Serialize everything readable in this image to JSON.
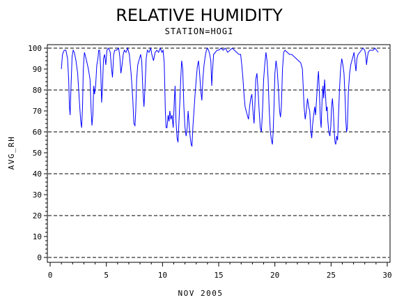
{
  "chart_data": {
    "type": "line",
    "title": "RELATIVE HUMIDITY",
    "subtitle": "STATION=HOGI",
    "xlabel": "NOV 2005",
    "ylabel": "AVG_RH",
    "xlim": [
      0,
      30
    ],
    "ylim": [
      0,
      100
    ],
    "xticks": [
      0,
      5,
      10,
      15,
      20,
      25,
      30
    ],
    "yticks": [
      0,
      10,
      20,
      30,
      40,
      50,
      60,
      70,
      80,
      90,
      100
    ],
    "grid_lines": [
      0,
      20,
      40,
      60,
      80,
      100
    ],
    "grid": "horizontal dashed",
    "series": [
      {
        "color": "#0000ff",
        "points": [
          [
            1.0,
            90
          ],
          [
            1.1,
            97
          ],
          [
            1.25,
            99
          ],
          [
            1.4,
            99
          ],
          [
            1.55,
            95
          ],
          [
            1.65,
            85
          ],
          [
            1.72,
            72
          ],
          [
            1.78,
            68
          ],
          [
            1.85,
            80
          ],
          [
            1.95,
            96
          ],
          [
            2.05,
            99
          ],
          [
            2.15,
            98
          ],
          [
            2.3,
            94
          ],
          [
            2.45,
            88
          ],
          [
            2.6,
            75
          ],
          [
            2.72,
            65
          ],
          [
            2.8,
            62
          ],
          [
            2.88,
            72
          ],
          [
            2.95,
            90
          ],
          [
            3.05,
            98
          ],
          [
            3.2,
            95
          ],
          [
            3.4,
            90
          ],
          [
            3.55,
            85
          ],
          [
            3.65,
            70
          ],
          [
            3.72,
            63
          ],
          [
            3.8,
            68
          ],
          [
            3.88,
            82
          ],
          [
            3.95,
            78
          ],
          [
            4.05,
            82
          ],
          [
            4.15,
            92
          ],
          [
            4.25,
            95
          ],
          [
            4.32,
            99
          ],
          [
            4.4,
            99
          ],
          [
            4.5,
            90
          ],
          [
            4.58,
            74
          ],
          [
            4.65,
            80
          ],
          [
            4.75,
            95
          ],
          [
            4.85,
            97
          ],
          [
            4.95,
            92
          ],
          [
            5.05,
            99
          ],
          [
            5.2,
            100
          ],
          [
            5.35,
            98
          ],
          [
            5.45,
            91
          ],
          [
            5.55,
            86
          ],
          [
            5.65,
            97
          ],
          [
            5.75,
            99
          ],
          [
            5.9,
            99
          ],
          [
            6.1,
            100
          ],
          [
            6.2,
            96
          ],
          [
            6.3,
            88
          ],
          [
            6.4,
            92
          ],
          [
            6.5,
            97
          ],
          [
            6.6,
            99
          ],
          [
            6.75,
            98
          ],
          [
            6.9,
            100
          ],
          [
            7.05,
            97
          ],
          [
            7.2,
            88
          ],
          [
            7.35,
            76
          ],
          [
            7.45,
            64
          ],
          [
            7.55,
            63
          ],
          [
            7.62,
            70
          ],
          [
            7.7,
            85
          ],
          [
            7.8,
            92
          ],
          [
            7.95,
            95
          ],
          [
            8.05,
            97
          ],
          [
            8.15,
            94
          ],
          [
            8.25,
            80
          ],
          [
            8.35,
            72
          ],
          [
            8.45,
            82
          ],
          [
            8.55,
            95
          ],
          [
            8.65,
            99
          ],
          [
            8.8,
            98
          ],
          [
            8.95,
            100
          ],
          [
            9.05,
            97
          ],
          [
            9.2,
            94
          ],
          [
            9.35,
            98
          ],
          [
            9.5,
            99
          ],
          [
            9.65,
            98
          ],
          [
            9.8,
            100
          ],
          [
            9.95,
            98
          ],
          [
            10.05,
            99
          ],
          [
            10.15,
            93
          ],
          [
            10.25,
            70
          ],
          [
            10.32,
            62
          ],
          [
            10.4,
            62
          ],
          [
            10.5,
            68
          ],
          [
            10.58,
            65
          ],
          [
            10.65,
            70
          ],
          [
            10.75,
            66
          ],
          [
            10.85,
            68
          ],
          [
            10.95,
            62
          ],
          [
            11.05,
            75
          ],
          [
            11.12,
            82
          ],
          [
            11.2,
            65
          ],
          [
            11.3,
            57
          ],
          [
            11.38,
            55
          ],
          [
            11.45,
            63
          ],
          [
            11.55,
            75
          ],
          [
            11.62,
            85
          ],
          [
            11.7,
            94
          ],
          [
            11.8,
            90
          ],
          [
            11.9,
            72
          ],
          [
            12.0,
            62
          ],
          [
            12.1,
            58
          ],
          [
            12.2,
            62
          ],
          [
            12.28,
            70
          ],
          [
            12.35,
            65
          ],
          [
            12.45,
            58
          ],
          [
            12.55,
            54
          ],
          [
            12.62,
            53
          ],
          [
            12.7,
            62
          ],
          [
            12.8,
            70
          ],
          [
            12.9,
            78
          ],
          [
            13.0,
            85
          ],
          [
            13.1,
            91
          ],
          [
            13.2,
            94
          ],
          [
            13.3,
            88
          ],
          [
            13.4,
            80
          ],
          [
            13.5,
            75
          ],
          [
            13.6,
            86
          ],
          [
            13.7,
            92
          ],
          [
            13.8,
            96
          ],
          [
            13.9,
            99
          ],
          [
            14.0,
            100
          ],
          [
            14.1,
            99
          ],
          [
            14.2,
            97
          ],
          [
            14.3,
            94
          ],
          [
            14.38,
            82
          ],
          [
            14.45,
            89
          ],
          [
            14.55,
            97
          ],
          [
            14.7,
            98
          ],
          [
            14.85,
            99
          ],
          [
            15.0,
            99
          ],
          [
            15.2,
            100
          ],
          [
            15.4,
            99
          ],
          [
            15.6,
            100
          ],
          [
            15.8,
            98
          ],
          [
            16.0,
            99
          ],
          [
            16.2,
            100
          ],
          [
            16.4,
            99
          ],
          [
            16.6,
            98
          ],
          [
            16.8,
            97
          ],
          [
            16.95,
            97
          ],
          [
            17.05,
            92
          ],
          [
            17.15,
            86
          ],
          [
            17.25,
            78
          ],
          [
            17.35,
            72
          ],
          [
            17.45,
            70
          ],
          [
            17.55,
            68
          ],
          [
            17.65,
            66
          ],
          [
            17.75,
            72
          ],
          [
            17.85,
            76
          ],
          [
            17.95,
            78
          ],
          [
            18.05,
            70
          ],
          [
            18.15,
            64
          ],
          [
            18.22,
            72
          ],
          [
            18.3,
            85
          ],
          [
            18.4,
            88
          ],
          [
            18.5,
            80
          ],
          [
            18.6,
            70
          ],
          [
            18.7,
            62
          ],
          [
            18.8,
            60
          ],
          [
            18.9,
            70
          ],
          [
            19.0,
            85
          ],
          [
            19.1,
            92
          ],
          [
            19.2,
            98
          ],
          [
            19.3,
            94
          ],
          [
            19.4,
            85
          ],
          [
            19.5,
            70
          ],
          [
            19.6,
            60
          ],
          [
            19.7,
            56
          ],
          [
            19.78,
            54
          ],
          [
            19.85,
            60
          ],
          [
            19.92,
            72
          ],
          [
            20.0,
            88
          ],
          [
            20.1,
            94
          ],
          [
            20.2,
            90
          ],
          [
            20.3,
            82
          ],
          [
            20.42,
            70
          ],
          [
            20.5,
            67
          ],
          [
            20.58,
            72
          ],
          [
            20.68,
            90
          ],
          [
            20.78,
            98
          ],
          [
            20.9,
            99
          ],
          [
            21.1,
            98
          ],
          [
            21.3,
            97
          ],
          [
            21.5,
            97
          ],
          [
            21.7,
            96
          ],
          [
            21.9,
            95
          ],
          [
            22.1,
            94
          ],
          [
            22.3,
            93
          ],
          [
            22.45,
            90
          ],
          [
            22.6,
            72
          ],
          [
            22.7,
            66
          ],
          [
            22.8,
            70
          ],
          [
            22.9,
            76
          ],
          [
            23.0,
            72
          ],
          [
            23.1,
            70
          ],
          [
            23.2,
            60
          ],
          [
            23.28,
            57
          ],
          [
            23.35,
            63
          ],
          [
            23.45,
            68
          ],
          [
            23.55,
            72
          ],
          [
            23.62,
            68
          ],
          [
            23.7,
            75
          ],
          [
            23.8,
            84
          ],
          [
            23.88,
            89
          ],
          [
            23.95,
            80
          ],
          [
            24.05,
            66
          ],
          [
            24.12,
            62
          ],
          [
            24.2,
            75
          ],
          [
            24.28,
            82
          ],
          [
            24.35,
            76
          ],
          [
            24.42,
            85
          ],
          [
            24.5,
            78
          ],
          [
            24.58,
            70
          ],
          [
            24.65,
            72
          ],
          [
            24.72,
            65
          ],
          [
            24.8,
            60
          ],
          [
            24.9,
            58
          ],
          [
            24.98,
            63
          ],
          [
            25.05,
            72
          ],
          [
            25.12,
            76
          ],
          [
            25.2,
            70
          ],
          [
            25.28,
            60
          ],
          [
            25.35,
            55
          ],
          [
            25.42,
            54
          ],
          [
            25.5,
            58
          ],
          [
            25.58,
            56
          ],
          [
            25.65,
            66
          ],
          [
            25.75,
            80
          ],
          [
            25.85,
            90
          ],
          [
            25.95,
            95
          ],
          [
            26.05,
            92
          ],
          [
            26.15,
            88
          ],
          [
            26.25,
            76
          ],
          [
            26.32,
            65
          ],
          [
            26.38,
            60
          ],
          [
            26.45,
            62
          ],
          [
            26.55,
            80
          ],
          [
            26.65,
            88
          ],
          [
            26.75,
            92
          ],
          [
            26.85,
            94
          ],
          [
            26.95,
            96
          ],
          [
            27.05,
            98
          ],
          [
            27.15,
            92
          ],
          [
            27.22,
            89
          ],
          [
            27.3,
            95
          ],
          [
            27.4,
            97
          ],
          [
            27.55,
            98
          ],
          [
            27.7,
            99
          ],
          [
            27.85,
            100
          ],
          [
            28.0,
            99
          ],
          [
            28.1,
            96
          ],
          [
            28.15,
            92
          ],
          [
            28.22,
            95
          ],
          [
            28.3,
            98
          ],
          [
            28.45,
            99
          ],
          [
            28.6,
            99
          ],
          [
            28.75,
            99
          ],
          [
            28.9,
            100
          ],
          [
            29.05,
            99
          ],
          [
            29.2,
            98
          ]
        ]
      }
    ]
  }
}
